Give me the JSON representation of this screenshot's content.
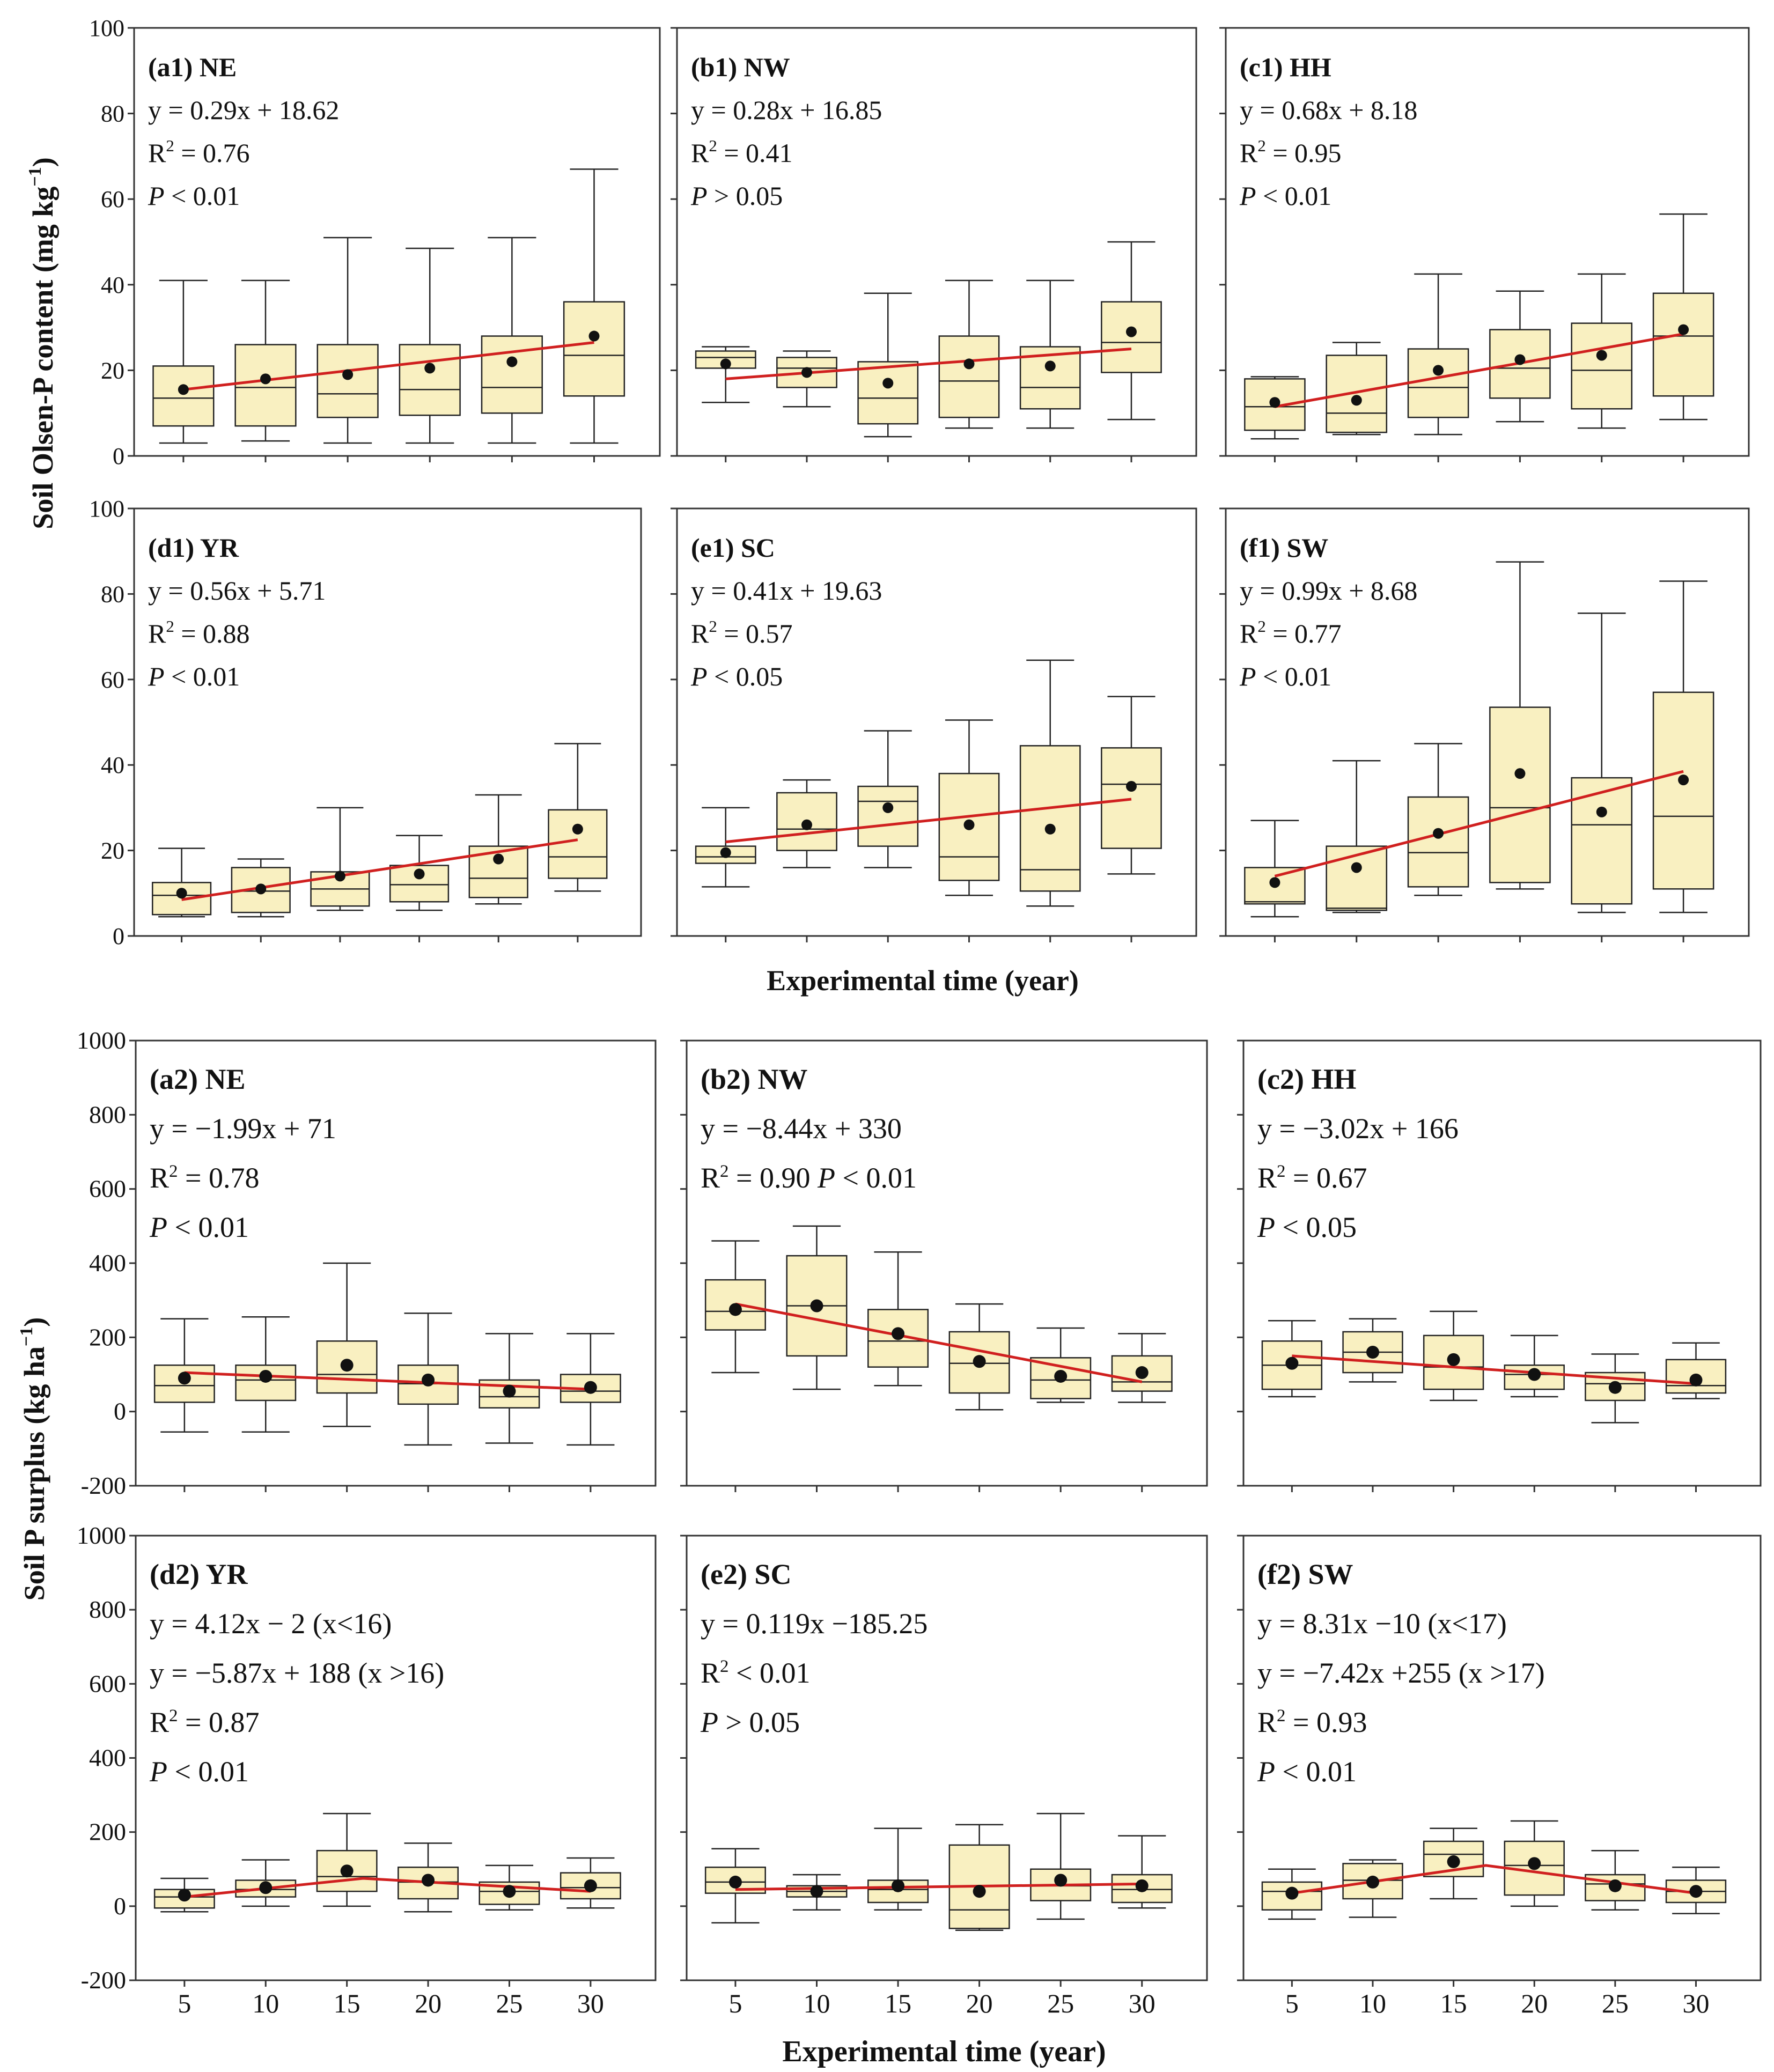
{
  "ylabels": {
    "top": "Soil Olsen-P content (mg kg",
    "top_sup": "−1",
    "top_close": ")",
    "bottom": "Soil P surplus  (kg ha",
    "bottom_sup": "−1",
    "bottom_close": ")"
  },
  "xlabels": {
    "top": "Experimental time (year)",
    "bottom": "Experimental time (year)"
  },
  "colors": {
    "box_fill": "#f9f0c1",
    "fit_line": "#d0201f",
    "mean_dot": "#111111"
  },
  "chart_data": [
    {
      "type": "box",
      "id": "a1",
      "title": "(a1) NE",
      "annotations": [
        "y = 0.29x + 18.62",
        "R2 = 0.76",
        "P < 0.01"
      ],
      "ylim": [
        0,
        100
      ],
      "yticks": [
        0,
        20,
        40,
        60,
        80,
        100
      ],
      "ytick_labels": true,
      "x": [
        5,
        10,
        15,
        20,
        25,
        30
      ],
      "xlim": [
        2,
        34
      ],
      "boxes": [
        {
          "whislo": 3,
          "q1": 7,
          "med": 13.5,
          "q3": 21,
          "whishi": 41,
          "mean": 15.5
        },
        {
          "whislo": 3.5,
          "q1": 7,
          "med": 16,
          "q3": 26,
          "whishi": 41,
          "mean": 18
        },
        {
          "whislo": 3,
          "q1": 9,
          "med": 14.5,
          "q3": 26,
          "whishi": 51,
          "mean": 19
        },
        {
          "whislo": 3,
          "q1": 9.5,
          "med": 15.5,
          "q3": 26,
          "whishi": 48.5,
          "mean": 20.5
        },
        {
          "whislo": 3,
          "q1": 10,
          "med": 16,
          "q3": 28,
          "whishi": 51,
          "mean": 22
        },
        {
          "whislo": 3,
          "q1": 14,
          "med": 23.5,
          "q3": 36,
          "whishi": 67,
          "mean": 28
        }
      ],
      "fit": [
        [
          5,
          15.5
        ],
        [
          30,
          26.5
        ]
      ]
    },
    {
      "type": "box",
      "id": "b1",
      "title": "(b1) NW",
      "annotations": [
        "y = 0.28x + 16.85",
        "R2 = 0.41",
        "P > 0.05"
      ],
      "ylim": [
        0,
        100
      ],
      "yticks": [
        0,
        20,
        40,
        60,
        80,
        100
      ],
      "ytick_labels": false,
      "x": [
        5,
        10,
        15,
        20,
        25,
        30
      ],
      "xlim": [
        2,
        34
      ],
      "boxes": [
        {
          "whislo": 12.5,
          "q1": 20.5,
          "med": 23,
          "q3": 24.5,
          "whishi": 25.5,
          "mean": 21.5
        },
        {
          "whislo": 11.5,
          "q1": 16,
          "med": 20.5,
          "q3": 23,
          "whishi": 24.5,
          "mean": 19.5
        },
        {
          "whislo": 4.5,
          "q1": 7.5,
          "med": 13.5,
          "q3": 22,
          "whishi": 38,
          "mean": 17
        },
        {
          "whislo": 6.5,
          "q1": 9,
          "med": 17.5,
          "q3": 28,
          "whishi": 41,
          "mean": 21.5
        },
        {
          "whislo": 6.5,
          "q1": 11,
          "med": 16,
          "q3": 25.5,
          "whishi": 41,
          "mean": 21
        },
        {
          "whislo": 8.5,
          "q1": 19.5,
          "med": 26.5,
          "q3": 36,
          "whishi": 50,
          "mean": 29
        }
      ],
      "fit": [
        [
          5,
          18
        ],
        [
          30,
          25
        ]
      ]
    },
    {
      "type": "box",
      "id": "c1",
      "title": "(c1) HH",
      "annotations": [
        "y = 0.68x + 8.18",
        "R2 = 0.95",
        "P < 0.01"
      ],
      "ylim": [
        0,
        100
      ],
      "yticks": [
        0,
        20,
        40,
        60,
        80,
        100
      ],
      "ytick_labels": false,
      "x": [
        5,
        10,
        15,
        20,
        25,
        30
      ],
      "xlim": [
        2,
        34
      ],
      "boxes": [
        {
          "whislo": 4,
          "q1": 6,
          "med": 11.5,
          "q3": 18,
          "whishi": 18.5,
          "mean": 12.5
        },
        {
          "whislo": 5,
          "q1": 5.5,
          "med": 10,
          "q3": 23.5,
          "whishi": 26.5,
          "mean": 13
        },
        {
          "whislo": 5,
          "q1": 9,
          "med": 16,
          "q3": 25,
          "whishi": 42.5,
          "mean": 20
        },
        {
          "whislo": 8,
          "q1": 13.5,
          "med": 20.5,
          "q3": 29.5,
          "whishi": 38.5,
          "mean": 22.5
        },
        {
          "whislo": 6.5,
          "q1": 11,
          "med": 20,
          "q3": 31,
          "whishi": 42.5,
          "mean": 23.5
        },
        {
          "whislo": 8.5,
          "q1": 14,
          "med": 28,
          "q3": 38,
          "whishi": 56.5,
          "mean": 29.5
        }
      ],
      "fit": [
        [
          5,
          11.5
        ],
        [
          30,
          28.5
        ]
      ]
    },
    {
      "type": "box",
      "id": "d1",
      "title": "(d1) YR",
      "annotations": [
        "y = 0.56x + 5.71",
        "R2 = 0.88",
        "P < 0.01"
      ],
      "ylim": [
        0,
        100
      ],
      "yticks": [
        0,
        20,
        40,
        60,
        80,
        100
      ],
      "ytick_labels": true,
      "x": [
        5,
        10,
        15,
        20,
        25,
        30
      ],
      "xlim": [
        2,
        34
      ],
      "boxes": [
        {
          "whislo": 4.5,
          "q1": 5,
          "med": 9.5,
          "q3": 12.5,
          "whishi": 20.5,
          "mean": 10
        },
        {
          "whislo": 4.5,
          "q1": 5.5,
          "med": 10.5,
          "q3": 16,
          "whishi": 18,
          "mean": 11
        },
        {
          "whislo": 6,
          "q1": 7,
          "med": 11,
          "q3": 15,
          "whishi": 30,
          "mean": 14
        },
        {
          "whislo": 6,
          "q1": 8,
          "med": 12,
          "q3": 16.5,
          "whishi": 23.5,
          "mean": 14.5
        },
        {
          "whislo": 7.5,
          "q1": 9,
          "med": 13.5,
          "q3": 21,
          "whishi": 33,
          "mean": 18
        },
        {
          "whislo": 10.5,
          "q1": 13.5,
          "med": 18.5,
          "q3": 29.5,
          "whishi": 45,
          "mean": 25
        }
      ],
      "fit": [
        [
          5,
          8.5
        ],
        [
          30,
          22.5
        ]
      ]
    },
    {
      "type": "box",
      "id": "e1",
      "title": "(e1) SC",
      "annotations": [
        "y = 0.41x + 19.63",
        "R2 = 0.57",
        "P < 0.05"
      ],
      "ylim": [
        0,
        100
      ],
      "yticks": [
        0,
        20,
        40,
        60,
        80,
        100
      ],
      "ytick_labels": false,
      "x": [
        5,
        10,
        15,
        20,
        25,
        30
      ],
      "xlim": [
        2,
        34
      ],
      "boxes": [
        {
          "whislo": 11.5,
          "q1": 17,
          "med": 18.5,
          "q3": 21,
          "whishi": 30,
          "mean": 19.5
        },
        {
          "whislo": 16,
          "q1": 20,
          "med": 25,
          "q3": 33.5,
          "whishi": 36.5,
          "mean": 26
        },
        {
          "whislo": 16,
          "q1": 21,
          "med": 31.5,
          "q3": 35,
          "whishi": 48,
          "mean": 30
        },
        {
          "whislo": 9.5,
          "q1": 13,
          "med": 18.5,
          "q3": 38,
          "whishi": 50.5,
          "mean": 26
        },
        {
          "whislo": 7,
          "q1": 10.5,
          "med": 15.5,
          "q3": 44.5,
          "whishi": 64.5,
          "mean": 25
        },
        {
          "whislo": 14.5,
          "q1": 20.5,
          "med": 35.5,
          "q3": 44,
          "whishi": 56,
          "mean": 35
        }
      ],
      "fit": [
        [
          5,
          22
        ],
        [
          30,
          32
        ]
      ]
    },
    {
      "type": "box",
      "id": "f1",
      "title": "(f1) SW",
      "annotations": [
        "y = 0.99x + 8.68",
        "R2 = 0.77",
        "P < 0.01"
      ],
      "ylim": [
        0,
        100
      ],
      "yticks": [
        0,
        20,
        40,
        60,
        80,
        100
      ],
      "ytick_labels": false,
      "x": [
        5,
        10,
        15,
        20,
        25,
        30
      ],
      "xlim": [
        2,
        34
      ],
      "boxes": [
        {
          "whislo": 4.5,
          "q1": 7.5,
          "med": 8,
          "q3": 16,
          "whishi": 27,
          "mean": 12.5
        },
        {
          "whislo": 5.5,
          "q1": 6,
          "med": 6.5,
          "q3": 21,
          "whishi": 41,
          "mean": 16
        },
        {
          "whislo": 9.5,
          "q1": 11.5,
          "med": 19.5,
          "q3": 32.5,
          "whishi": 45,
          "mean": 24
        },
        {
          "whislo": 11,
          "q1": 12.5,
          "med": 30,
          "q3": 53.5,
          "whishi": 87.5,
          "mean": 38
        },
        {
          "whislo": 5.5,
          "q1": 7.5,
          "med": 26,
          "q3": 37,
          "whishi": 75.5,
          "mean": 29
        },
        {
          "whislo": 5.5,
          "q1": 11,
          "med": 28,
          "q3": 57,
          "whishi": 83,
          "mean": 36.5
        }
      ],
      "fit": [
        [
          5,
          14
        ],
        [
          30,
          38.5
        ]
      ]
    },
    {
      "type": "box",
      "id": "a2",
      "title": "(a2) NE",
      "annotations": [
        "y = −1.99x + 71",
        "R2 = 0.78",
        "P < 0.01"
      ],
      "ylim": [
        -200,
        1000
      ],
      "yticks": [
        -200,
        0,
        200,
        400,
        600,
        800,
        1000
      ],
      "ytick_labels": true,
      "x": [
        5,
        10,
        15,
        20,
        25,
        30
      ],
      "xlim": [
        2,
        34
      ],
      "boxes": [
        {
          "whislo": -55,
          "q1": 25,
          "med": 70,
          "q3": 125,
          "whishi": 250,
          "mean": 90
        },
        {
          "whislo": -55,
          "q1": 30,
          "med": 85,
          "q3": 125,
          "whishi": 255,
          "mean": 95
        },
        {
          "whislo": -40,
          "q1": 50,
          "med": 100,
          "q3": 190,
          "whishi": 400,
          "mean": 125
        },
        {
          "whislo": -90,
          "q1": 20,
          "med": 75,
          "q3": 125,
          "whishi": 265,
          "mean": 85
        },
        {
          "whislo": -85,
          "q1": 10,
          "med": 40,
          "q3": 85,
          "whishi": 210,
          "mean": 55
        },
        {
          "whislo": -90,
          "q1": 25,
          "med": 55,
          "q3": 100,
          "whishi": 210,
          "mean": 65
        }
      ],
      "fit": [
        [
          5,
          105
        ],
        [
          30,
          60
        ]
      ]
    },
    {
      "type": "box",
      "id": "b2",
      "title": "(b2) NW",
      "annotations": [
        "y = −8.44x + 330",
        "R2 = 0.90  P < 0.01"
      ],
      "ylim": [
        -200,
        1000
      ],
      "yticks": [
        -200,
        0,
        200,
        400,
        600,
        800,
        1000
      ],
      "ytick_labels": false,
      "x": [
        5,
        10,
        15,
        20,
        25,
        30
      ],
      "xlim": [
        2,
        34
      ],
      "boxes": [
        {
          "whislo": 105,
          "q1": 220,
          "med": 270,
          "q3": 355,
          "whishi": 460,
          "mean": 275
        },
        {
          "whislo": 60,
          "q1": 150,
          "med": 285,
          "q3": 420,
          "whishi": 500,
          "mean": 285
        },
        {
          "whislo": 70,
          "q1": 120,
          "med": 190,
          "q3": 275,
          "whishi": 430,
          "mean": 210
        },
        {
          "whislo": 5,
          "q1": 50,
          "med": 130,
          "q3": 215,
          "whishi": 290,
          "mean": 135
        },
        {
          "whislo": 25,
          "q1": 35,
          "med": 85,
          "q3": 145,
          "whishi": 225,
          "mean": 95
        },
        {
          "whislo": 25,
          "q1": 55,
          "med": 80,
          "q3": 150,
          "whishi": 210,
          "mean": 105
        }
      ],
      "fit": [
        [
          5,
          290
        ],
        [
          30,
          80
        ]
      ]
    },
    {
      "type": "box",
      "id": "c2",
      "title": "(c2) HH",
      "annotations": [
        "y = −3.02x + 166",
        "R2 = 0.67",
        "P < 0.05"
      ],
      "ylim": [
        -200,
        1000
      ],
      "yticks": [
        -200,
        0,
        200,
        400,
        600,
        800,
        1000
      ],
      "ytick_labels": false,
      "x": [
        5,
        10,
        15,
        20,
        25,
        30
      ],
      "xlim": [
        2,
        34
      ],
      "boxes": [
        {
          "whislo": 40,
          "q1": 60,
          "med": 125,
          "q3": 190,
          "whishi": 245,
          "mean": 130
        },
        {
          "whislo": 80,
          "q1": 105,
          "med": 160,
          "q3": 215,
          "whishi": 250,
          "mean": 160
        },
        {
          "whislo": 30,
          "q1": 60,
          "med": 120,
          "q3": 205,
          "whishi": 270,
          "mean": 140
        },
        {
          "whislo": 40,
          "q1": 60,
          "med": 100,
          "q3": 125,
          "whishi": 205,
          "mean": 100
        },
        {
          "whislo": -30,
          "q1": 30,
          "med": 75,
          "q3": 105,
          "whishi": 155,
          "mean": 65
        },
        {
          "whislo": 35,
          "q1": 50,
          "med": 70,
          "q3": 140,
          "whishi": 185,
          "mean": 85
        }
      ],
      "fit": [
        [
          5,
          150
        ],
        [
          30,
          75
        ]
      ]
    },
    {
      "type": "box",
      "id": "d2",
      "title": "(d2) YR",
      "annotations": [
        "y = 4.12x − 2 (x<16)",
        "y = −5.87x + 188 (x >16)",
        "R2 = 0.87",
        "P < 0.01"
      ],
      "ylim": [
        -200,
        1000
      ],
      "yticks": [
        -200,
        0,
        200,
        400,
        600,
        800,
        1000
      ],
      "ytick_labels": true,
      "x": [
        5,
        10,
        15,
        20,
        25,
        30
      ],
      "xlim": [
        2,
        34
      ],
      "xticklabels": [
        "5",
        "10",
        "15",
        "20",
        "25",
        "30"
      ],
      "boxes": [
        {
          "whislo": -15,
          "q1": -5,
          "med": 25,
          "q3": 45,
          "whishi": 75,
          "mean": 30
        },
        {
          "whislo": 0,
          "q1": 25,
          "med": 45,
          "q3": 70,
          "whishi": 125,
          "mean": 50
        },
        {
          "whislo": 0,
          "q1": 40,
          "med": 80,
          "q3": 150,
          "whishi": 250,
          "mean": 95
        },
        {
          "whislo": -15,
          "q1": 20,
          "med": 65,
          "q3": 105,
          "whishi": 170,
          "mean": 70
        },
        {
          "whislo": -10,
          "q1": 5,
          "med": 40,
          "q3": 65,
          "whishi": 110,
          "mean": 40
        },
        {
          "whislo": -5,
          "q1": 20,
          "med": 50,
          "q3": 90,
          "whishi": 130,
          "mean": 55
        }
      ],
      "fit": [
        [
          5,
          25
        ],
        [
          16,
          75
        ],
        [
          30,
          40
        ]
      ]
    },
    {
      "type": "box",
      "id": "e2",
      "title": "(e2) SC",
      "annotations": [
        "y = 0.119x −185.25",
        "R2 < 0.01",
        "P > 0.05"
      ],
      "ylim": [
        -200,
        1000
      ],
      "yticks": [
        -200,
        0,
        200,
        400,
        600,
        800,
        1000
      ],
      "ytick_labels": false,
      "x": [
        5,
        10,
        15,
        20,
        25,
        30
      ],
      "xlim": [
        2,
        34
      ],
      "xticklabels": [
        "5",
        "10",
        "15",
        "20",
        "25",
        "30"
      ],
      "boxes": [
        {
          "whislo": -45,
          "q1": 35,
          "med": 65,
          "q3": 105,
          "whishi": 155,
          "mean": 65
        },
        {
          "whislo": -10,
          "q1": 25,
          "med": 40,
          "q3": 55,
          "whishi": 85,
          "mean": 40
        },
        {
          "whislo": -10,
          "q1": 10,
          "med": 45,
          "q3": 70,
          "whishi": 210,
          "mean": 55
        },
        {
          "whislo": -65,
          "q1": -60,
          "med": -10,
          "q3": 165,
          "whishi": 220,
          "mean": 40
        },
        {
          "whislo": -35,
          "q1": 15,
          "med": 55,
          "q3": 100,
          "whishi": 250,
          "mean": 70
        },
        {
          "whislo": -5,
          "q1": 10,
          "med": 45,
          "q3": 85,
          "whishi": 190,
          "mean": 55
        }
      ],
      "fit": [
        [
          5,
          45
        ],
        [
          30,
          60
        ]
      ]
    },
    {
      "type": "box",
      "id": "f2",
      "title": "(f2) SW",
      "annotations": [
        "y = 8.31x −10 (x<17)",
        "y = −7.42x +255 (x >17)",
        "R2 = 0.93",
        "P < 0.01"
      ],
      "ylim": [
        -200,
        1000
      ],
      "yticks": [
        -200,
        0,
        200,
        400,
        600,
        800,
        1000
      ],
      "ytick_labels": false,
      "x": [
        5,
        10,
        15,
        20,
        25,
        30
      ],
      "xlim": [
        2,
        34
      ],
      "xticklabels": [
        "5",
        "10",
        "15",
        "20",
        "25",
        "30"
      ],
      "boxes": [
        {
          "whislo": -35,
          "q1": -10,
          "med": 40,
          "q3": 65,
          "whishi": 100,
          "mean": 35
        },
        {
          "whislo": -30,
          "q1": 20,
          "med": 70,
          "q3": 115,
          "whishi": 125,
          "mean": 65
        },
        {
          "whislo": 20,
          "q1": 80,
          "med": 140,
          "q3": 175,
          "whishi": 210,
          "mean": 120
        },
        {
          "whislo": 0,
          "q1": 30,
          "med": 110,
          "q3": 175,
          "whishi": 230,
          "mean": 115
        },
        {
          "whislo": -10,
          "q1": 15,
          "med": 60,
          "q3": 85,
          "whishi": 150,
          "mean": 55
        },
        {
          "whislo": -20,
          "q1": 10,
          "med": 40,
          "q3": 70,
          "whishi": 105,
          "mean": 40
        }
      ],
      "fit": [
        [
          5,
          35
        ],
        [
          17,
          110
        ],
        [
          30,
          35
        ]
      ]
    }
  ]
}
